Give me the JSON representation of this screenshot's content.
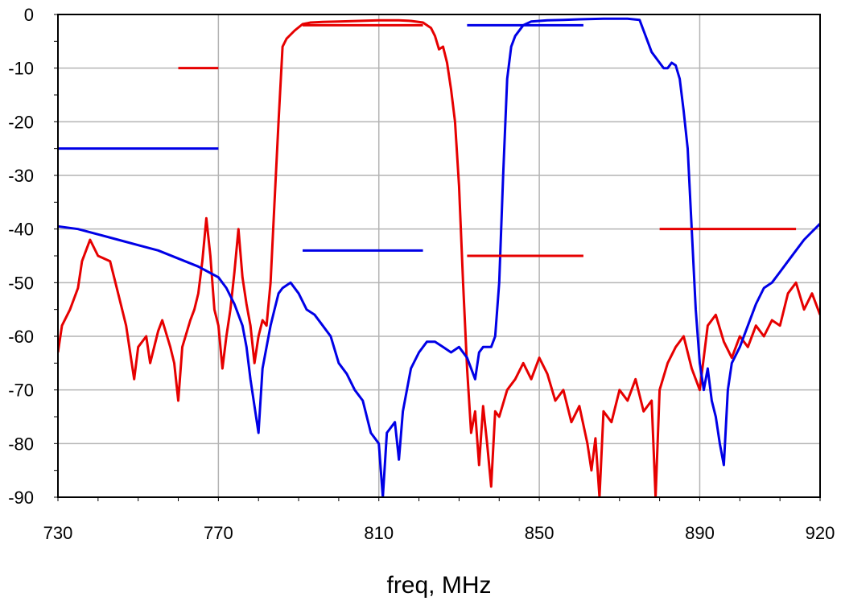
{
  "chart_data": {
    "type": "line",
    "title": "",
    "xlabel": "freq, MHz",
    "ylabel": "",
    "xlim": [
      730,
      920
    ],
    "ylim": [
      -90,
      0
    ],
    "x_ticks": [
      730,
      770,
      810,
      850,
      890,
      920
    ],
    "y_ticks": [
      0,
      -10,
      -20,
      -30,
      -40,
      -50,
      -60,
      -70,
      -80,
      -90
    ],
    "grid": true,
    "legend": "none",
    "series": [
      {
        "color": "#e60000",
        "points": [
          [
            730,
            -63
          ],
          [
            731,
            -58
          ],
          [
            733,
            -55
          ],
          [
            735,
            -51
          ],
          [
            736,
            -46
          ],
          [
            738,
            -42
          ],
          [
            740,
            -45
          ],
          [
            743,
            -46
          ],
          [
            745,
            -52
          ],
          [
            747,
            -58
          ],
          [
            748,
            -63
          ],
          [
            749,
            -68
          ],
          [
            750,
            -62
          ],
          [
            752,
            -60
          ],
          [
            753,
            -65
          ],
          [
            755,
            -59
          ],
          [
            756,
            -57
          ],
          [
            758,
            -62
          ],
          [
            759,
            -65
          ],
          [
            760,
            -72
          ],
          [
            761,
            -62
          ],
          [
            763,
            -57
          ],
          [
            764,
            -55
          ],
          [
            765,
            -52
          ],
          [
            766,
            -46
          ],
          [
            767,
            -38
          ],
          [
            768,
            -45
          ],
          [
            769,
            -55
          ],
          [
            770,
            -58
          ],
          [
            771,
            -66
          ],
          [
            772,
            -60
          ],
          [
            773,
            -55
          ],
          [
            774,
            -48
          ],
          [
            775,
            -40
          ],
          [
            776,
            -49
          ],
          [
            777,
            -54
          ],
          [
            778,
            -58
          ],
          [
            779,
            -65
          ],
          [
            780,
            -60
          ],
          [
            781,
            -57
          ],
          [
            782,
            -58
          ],
          [
            783,
            -50
          ],
          [
            784,
            -35
          ],
          [
            785,
            -20
          ],
          [
            786,
            -6
          ],
          [
            787,
            -4.5
          ],
          [
            789,
            -3
          ],
          [
            791,
            -1.8
          ],
          [
            793,
            -1.5
          ],
          [
            796,
            -1.4
          ],
          [
            800,
            -1.3
          ],
          [
            805,
            -1.2
          ],
          [
            810,
            -1.1
          ],
          [
            815,
            -1.1
          ],
          [
            818,
            -1.2
          ],
          [
            821,
            -1.5
          ],
          [
            823,
            -2.5
          ],
          [
            824,
            -4
          ],
          [
            825,
            -6.5
          ],
          [
            826,
            -6
          ],
          [
            827,
            -9
          ],
          [
            828,
            -14
          ],
          [
            829,
            -20
          ],
          [
            830,
            -32
          ],
          [
            831,
            -50
          ],
          [
            832,
            -66
          ],
          [
            833,
            -78
          ],
          [
            834,
            -74
          ],
          [
            835,
            -84
          ],
          [
            836,
            -73
          ],
          [
            837,
            -80
          ],
          [
            838,
            -88
          ],
          [
            839,
            -74
          ],
          [
            840,
            -75
          ],
          [
            842,
            -70
          ],
          [
            844,
            -68
          ],
          [
            846,
            -65
          ],
          [
            848,
            -68
          ],
          [
            850,
            -64
          ],
          [
            852,
            -67
          ],
          [
            854,
            -72
          ],
          [
            856,
            -70
          ],
          [
            858,
            -76
          ],
          [
            860,
            -73
          ],
          [
            862,
            -80
          ],
          [
            863,
            -85
          ],
          [
            864,
            -79
          ],
          [
            865,
            -90
          ],
          [
            866,
            -74
          ],
          [
            868,
            -76
          ],
          [
            870,
            -70
          ],
          [
            872,
            -72
          ],
          [
            874,
            -68
          ],
          [
            876,
            -74
          ],
          [
            878,
            -72
          ],
          [
            879,
            -90
          ],
          [
            880,
            -70
          ],
          [
            882,
            -65
          ],
          [
            884,
            -62
          ],
          [
            886,
            -60
          ],
          [
            888,
            -66
          ],
          [
            890,
            -70
          ],
          [
            892,
            -58
          ],
          [
            894,
            -56
          ],
          [
            896,
            -61
          ],
          [
            898,
            -64
          ],
          [
            900,
            -60
          ],
          [
            902,
            -62
          ],
          [
            904,
            -58
          ],
          [
            906,
            -60
          ],
          [
            908,
            -57
          ],
          [
            910,
            -58
          ],
          [
            912,
            -52
          ],
          [
            914,
            -50
          ],
          [
            916,
            -55
          ],
          [
            918,
            -52
          ],
          [
            920,
            -56
          ]
        ]
      },
      {
        "color": "#0000e6",
        "points": [
          [
            730,
            -39.5
          ],
          [
            735,
            -40
          ],
          [
            740,
            -41
          ],
          [
            745,
            -42
          ],
          [
            750,
            -43
          ],
          [
            755,
            -44
          ],
          [
            760,
            -45.5
          ],
          [
            765,
            -47
          ],
          [
            770,
            -49
          ],
          [
            772,
            -51
          ],
          [
            774,
            -54
          ],
          [
            776,
            -58
          ],
          [
            777,
            -62
          ],
          [
            778,
            -68
          ],
          [
            779,
            -73
          ],
          [
            780,
            -78
          ],
          [
            781,
            -66
          ],
          [
            782,
            -62
          ],
          [
            783,
            -58
          ],
          [
            784,
            -55
          ],
          [
            785,
            -52
          ],
          [
            786,
            -51
          ],
          [
            788,
            -50
          ],
          [
            790,
            -52
          ],
          [
            792,
            -55
          ],
          [
            794,
            -56
          ],
          [
            796,
            -58
          ],
          [
            798,
            -60
          ],
          [
            800,
            -65
          ],
          [
            802,
            -67
          ],
          [
            804,
            -70
          ],
          [
            806,
            -72
          ],
          [
            808,
            -78
          ],
          [
            810,
            -80
          ],
          [
            811,
            -90
          ],
          [
            812,
            -78
          ],
          [
            814,
            -76
          ],
          [
            815,
            -83
          ],
          [
            816,
            -74
          ],
          [
            818,
            -66
          ],
          [
            820,
            -63
          ],
          [
            822,
            -61
          ],
          [
            824,
            -61
          ],
          [
            826,
            -62
          ],
          [
            828,
            -63
          ],
          [
            830,
            -62
          ],
          [
            832,
            -64
          ],
          [
            834,
            -68
          ],
          [
            835,
            -63
          ],
          [
            836,
            -62
          ],
          [
            838,
            -62
          ],
          [
            839,
            -60
          ],
          [
            840,
            -50
          ],
          [
            841,
            -30
          ],
          [
            842,
            -12
          ],
          [
            843,
            -6
          ],
          [
            844,
            -4
          ],
          [
            846,
            -2
          ],
          [
            848,
            -1.3
          ],
          [
            852,
            -1.1
          ],
          [
            856,
            -1
          ],
          [
            860,
            -0.9
          ],
          [
            866,
            -0.8
          ],
          [
            872,
            -0.8
          ],
          [
            875,
            -1
          ],
          [
            876,
            -3
          ],
          [
            877,
            -5
          ],
          [
            878,
            -7
          ],
          [
            880,
            -9
          ],
          [
            881,
            -10
          ],
          [
            882,
            -10
          ],
          [
            883,
            -9
          ],
          [
            884,
            -9.5
          ],
          [
            885,
            -12
          ],
          [
            886,
            -18
          ],
          [
            887,
            -25
          ],
          [
            888,
            -40
          ],
          [
            889,
            -55
          ],
          [
            890,
            -65
          ],
          [
            891,
            -70
          ],
          [
            892,
            -66
          ],
          [
            893,
            -72
          ],
          [
            894,
            -75
          ],
          [
            895,
            -80
          ],
          [
            896,
            -84
          ],
          [
            897,
            -70
          ],
          [
            898,
            -65
          ],
          [
            900,
            -62
          ],
          [
            902,
            -58
          ],
          [
            904,
            -54
          ],
          [
            906,
            -51
          ],
          [
            908,
            -50
          ],
          [
            910,
            -48
          ],
          [
            912,
            -46
          ],
          [
            914,
            -44
          ],
          [
            916,
            -42
          ],
          [
            918,
            -40.5
          ],
          [
            920,
            -39
          ]
        ]
      }
    ],
    "spec_segments": [
      {
        "color": "#e60000",
        "x": [
          760,
          770
        ],
        "y": -10
      },
      {
        "color": "#0000e6",
        "x": [
          730,
          770
        ],
        "y": -25
      },
      {
        "color": "#e60000",
        "x": [
          791,
          821
        ],
        "y": -2
      },
      {
        "color": "#0000e6",
        "x": [
          791,
          821
        ],
        "y": -44
      },
      {
        "color": "#0000e6",
        "x": [
          832,
          861
        ],
        "y": -2
      },
      {
        "color": "#e60000",
        "x": [
          832,
          861
        ],
        "y": -45
      },
      {
        "color": "#e60000",
        "x": [
          880,
          914
        ],
        "y": -40
      }
    ]
  }
}
